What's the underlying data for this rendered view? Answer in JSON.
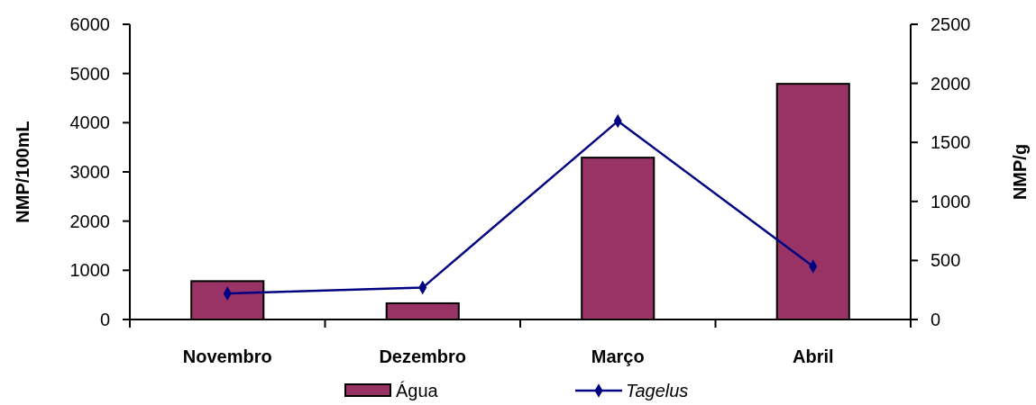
{
  "chart_data": {
    "type": "bar",
    "categories": [
      "Novembro",
      "Dezembro",
      "Março",
      "Abril"
    ],
    "ylabel": "NMP/100mL",
    "y2label": "NMP/g",
    "series": [
      {
        "name": "Água",
        "color": "#993366",
        "values": [
          780,
          330,
          3290,
          4790
        ]
      },
      {
        "name": "Tagelus",
        "type": "line",
        "axis": "y2",
        "color": "#000080",
        "marker": "diamond",
        "values": [
          220,
          270,
          1680,
          450
        ]
      }
    ],
    "ylim": [
      0,
      6000
    ],
    "yticks": [
      0,
      1000,
      2000,
      3000,
      4000,
      5000,
      6000
    ],
    "y2lim": [
      0,
      2500
    ],
    "y2ticks": [
      0,
      500,
      1000,
      1500,
      2000,
      2500
    ],
    "legend": "bottom",
    "grid": false
  }
}
